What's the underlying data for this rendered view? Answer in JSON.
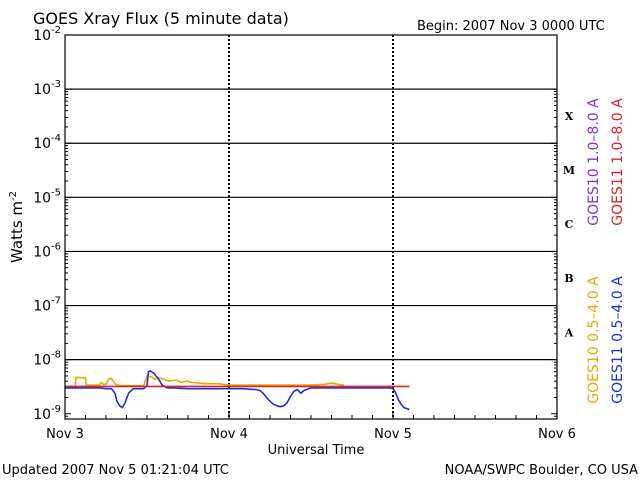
{
  "header": {
    "title": "GOES Xray Flux (5 minute data)",
    "begin": "Begin:  2007 Nov 3 0000 UTC"
  },
  "footer": {
    "updated": "Updated 2007 Nov  5 01:21:04 UTC",
    "credit": "NOAA/SWPC Boulder, CO USA"
  },
  "chart_data": {
    "type": "line",
    "title": "GOES Xray Flux (5 minute data)",
    "xlabel": "Universal Time",
    "ylabel": "Watts m",
    "ylabel_sup": "-2",
    "yscale": "log",
    "ylim": [
      8e-10,
      0.01
    ],
    "xlim": [
      0,
      72
    ],
    "x_unit": "hours since 2007 Nov 3 0000 UTC",
    "x_ticks": [
      {
        "x": 0,
        "label": "Nov 3"
      },
      {
        "x": 24,
        "label": "Nov 4"
      },
      {
        "x": 48,
        "label": "Nov 5"
      },
      {
        "x": 72,
        "label": "Nov 6"
      }
    ],
    "y_ticks": [
      {
        "value": 0.01,
        "base": "10",
        "exp": "-2"
      },
      {
        "value": 0.001,
        "base": "10",
        "exp": "-3"
      },
      {
        "value": 0.0001,
        "base": "10",
        "exp": "-4"
      },
      {
        "value": 1e-05,
        "base": "10",
        "exp": "-5"
      },
      {
        "value": 1e-06,
        "base": "10",
        "exp": "-6"
      },
      {
        "value": 1e-07,
        "base": "10",
        "exp": "-7"
      },
      {
        "value": 1e-08,
        "base": "10",
        "exp": "-8"
      },
      {
        "value": 1e-09,
        "base": "10",
        "exp": "-9"
      }
    ],
    "flare_classes": [
      {
        "label": "X",
        "value": 0.00032
      },
      {
        "label": "M",
        "value": 3.2e-05
      },
      {
        "label": "C",
        "value": 3.2e-06
      },
      {
        "label": "B",
        "value": 3.2e-07
      },
      {
        "label": "A",
        "value": 3.2e-08
      }
    ],
    "grid_horizontal": [
      0.001,
      0.0001,
      1e-05,
      1e-06,
      1e-07,
      1e-08
    ],
    "legend_placement": "right",
    "series": [
      {
        "name": "GOES10 0.5–4.0 A",
        "color": "#e8a800",
        "x": [
          0,
          1.5,
          1.6,
          3,
          3.1,
          5,
          5.3,
          5.6,
          6,
          6.4,
          6.8,
          7.3,
          8,
          9,
          10,
          11.5,
          12,
          12.4,
          12.8,
          13.2,
          13.8,
          14.5,
          15.3,
          16.2,
          17,
          17.8,
          18.5,
          19.5,
          20.5,
          21.5,
          22.5,
          23,
          24,
          28,
          32,
          36,
          38,
          38.5,
          39,
          39.5,
          40,
          40.8
        ],
        "y": [
          3.2e-09,
          3.2e-09,
          4.7e-09,
          4.6e-09,
          3.4e-09,
          3.4e-09,
          3.8e-09,
          3.5e-09,
          3.5e-09,
          4.4e-09,
          4.5e-09,
          3.6e-09,
          3.3e-09,
          3.3e-09,
          3.3e-09,
          3.3e-09,
          5e-09,
          4.9e-09,
          4.7e-09,
          4.3e-09,
          4.6e-09,
          4.3e-09,
          4e-09,
          4.2e-09,
          3.8e-09,
          4e-09,
          3.8e-09,
          3.7e-09,
          3.6e-09,
          3.6e-09,
          3.6e-09,
          3.5e-09,
          3.4e-09,
          3.4e-09,
          3.4e-09,
          3.4e-09,
          3.5e-09,
          3.6e-09,
          3.7e-09,
          3.6e-09,
          3.5e-09,
          3.4e-09
        ]
      },
      {
        "name": "GOES11 0.5–4.0 A",
        "color": "#1a2fd8",
        "x": [
          0,
          5,
          6,
          6.8,
          7.3,
          7.6,
          8,
          8.4,
          8.8,
          9.3,
          10,
          11.5,
          12,
          12.2,
          12.5,
          13,
          13.3,
          13.6,
          14.2,
          15,
          16,
          18,
          20,
          22,
          24,
          26,
          28,
          28.5,
          29,
          29.5,
          30,
          30.5,
          31,
          31.5,
          32,
          32.5,
          33,
          33.5,
          34,
          34.5,
          35,
          36,
          38,
          40,
          42,
          44,
          46,
          47.5,
          48,
          48.4,
          48.8,
          49.2,
          49.6,
          50,
          50.4
        ],
        "y": [
          3e-09,
          3e-09,
          2.9e-09,
          2.9e-09,
          2.4e-09,
          1.7e-09,
          1.4e-09,
          1.3e-09,
          1.6e-09,
          2.4e-09,
          2.9e-09,
          2.9e-09,
          3.3e-09,
          6e-09,
          6.2e-09,
          5.6e-09,
          5e-09,
          4.6e-09,
          3.4e-09,
          3e-09,
          3e-09,
          2.9e-09,
          2.9e-09,
          2.9e-09,
          2.9e-09,
          2.9e-09,
          2.8e-09,
          2.7e-09,
          2.4e-09,
          2e-09,
          1.7e-09,
          1.5e-09,
          1.4e-09,
          1.35e-09,
          1.4e-09,
          1.6e-09,
          2.1e-09,
          2.6e-09,
          2.8e-09,
          2.4e-09,
          2.7e-09,
          3e-09,
          3e-09,
          3e-09,
          3e-09,
          3e-09,
          3e-09,
          3e-09,
          2.9e-09,
          2.4e-09,
          1.8e-09,
          1.5e-09,
          1.3e-09,
          1.25e-09,
          1.2e-09
        ]
      },
      {
        "name": "GOES10 1.0–8.0 A",
        "color": "#8a2be2",
        "x": [],
        "y": []
      },
      {
        "name": "GOES11 1.0–8.0 A",
        "color": "#e02020",
        "x": [
          0,
          50.4
        ],
        "y": [
          3.2e-09,
          3.2e-09
        ]
      }
    ]
  }
}
